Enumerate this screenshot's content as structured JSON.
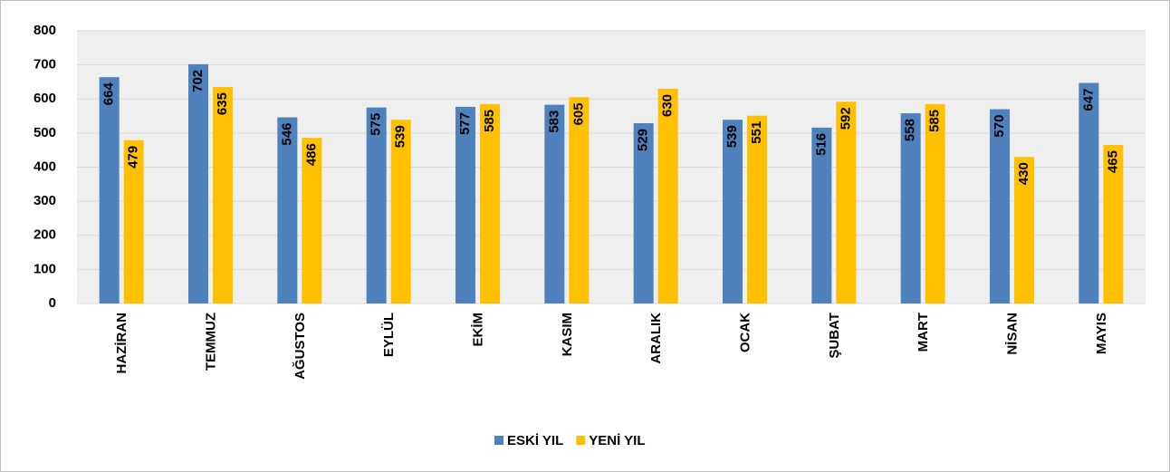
{
  "chart_data": {
    "type": "bar",
    "categories": [
      "HAZİRAN",
      "TEMMUZ",
      "AĞUSTOS",
      "EYLÜL",
      "EKİM",
      "KASIM",
      "ARALIK",
      "OCAK",
      "ŞUBAT",
      "MART",
      "NİSAN",
      "MAYIS"
    ],
    "series": [
      {
        "name": "ESKİ YIL",
        "color": "#4f81bd",
        "values": [
          664,
          702,
          546,
          575,
          577,
          583,
          529,
          539,
          516,
          558,
          570,
          647
        ]
      },
      {
        "name": "YENİ YIL",
        "color": "#ffc000",
        "values": [
          479,
          635,
          486,
          539,
          585,
          605,
          630,
          551,
          592,
          585,
          430,
          465
        ]
      }
    ],
    "ylim": [
      0,
      800
    ],
    "yticks": [
      0,
      100,
      200,
      300,
      400,
      500,
      600,
      700,
      800
    ],
    "grid": true,
    "legend": "bottom"
  }
}
